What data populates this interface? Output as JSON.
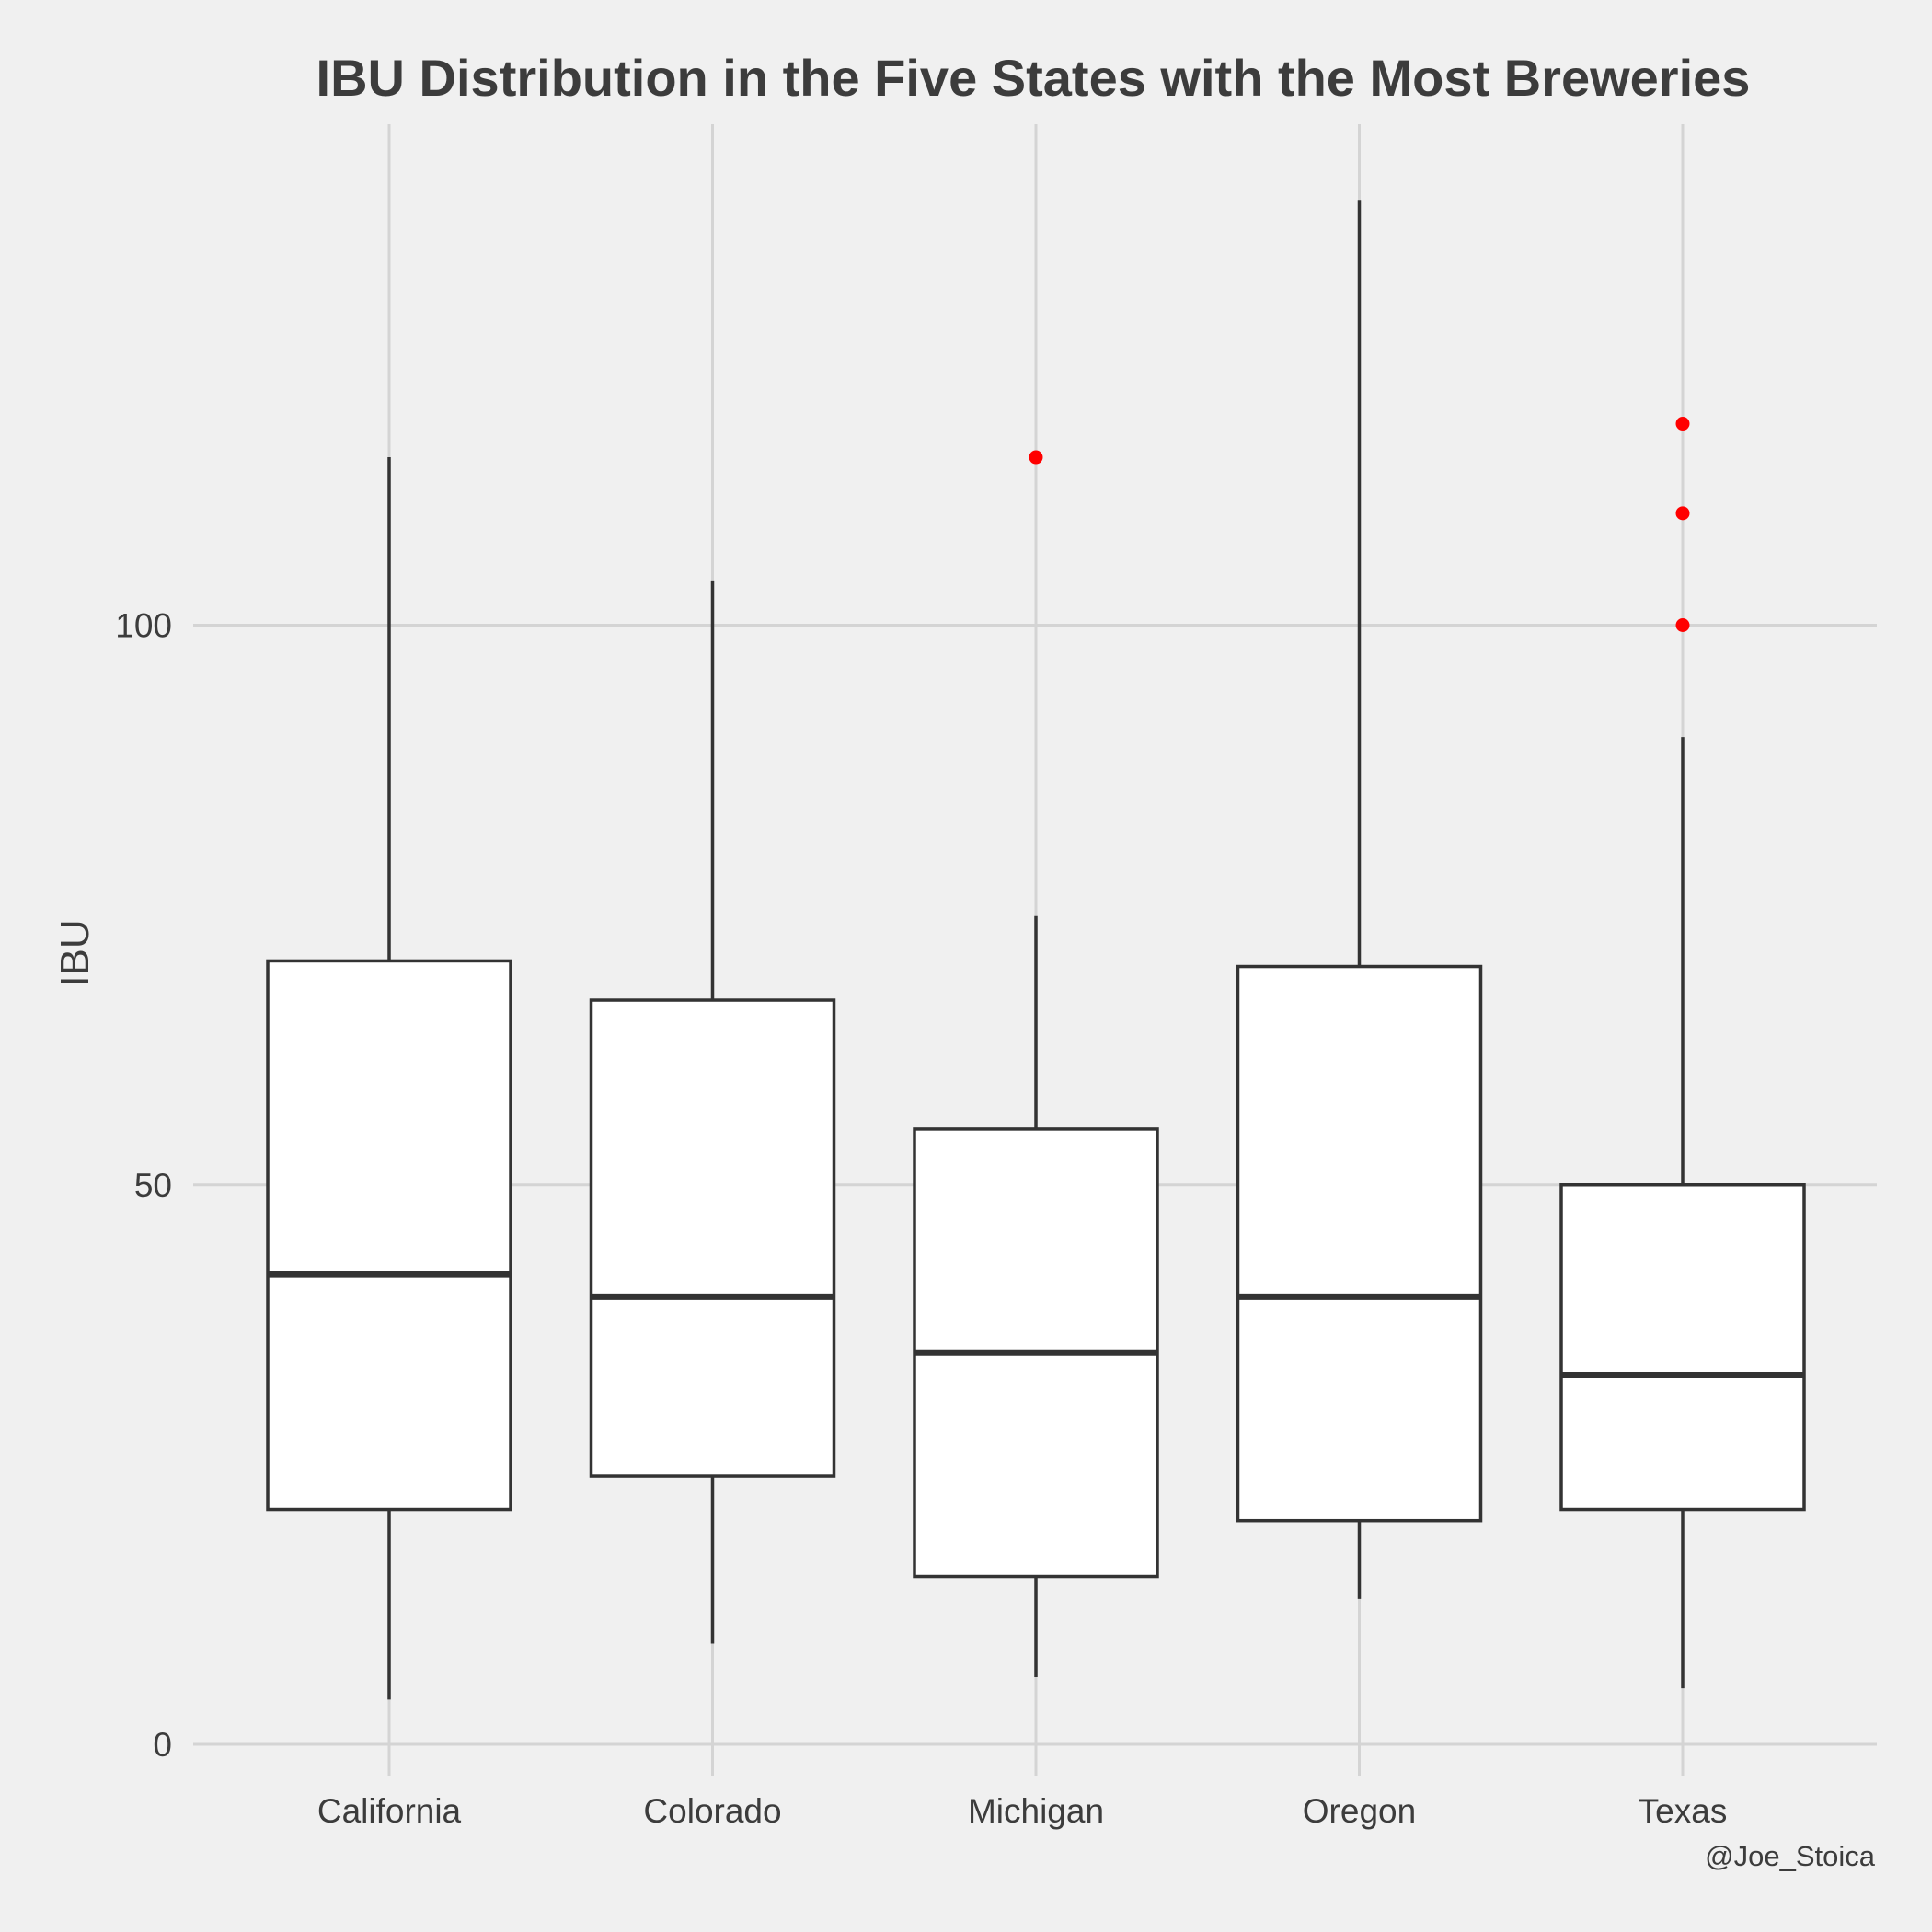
{
  "chart_data": {
    "type": "boxplot",
    "title": "IBU Distribution in the Five States with the Most Breweries",
    "xlabel": "",
    "ylabel": "IBU",
    "caption": "@Joe_Stoica",
    "ylim": [
      -5,
      140
    ],
    "yticks": [
      0,
      50,
      100
    ],
    "grid": true,
    "background_color": "#f0f0f0",
    "grid_color": "#d4d4d4",
    "box_fill": "#ffffff",
    "line_color": "#333333",
    "outlier_color": "#ff0000",
    "categories": [
      "California",
      "Colorado",
      "Michigan",
      "Oregon",
      "Texas"
    ],
    "boxes": [
      {
        "category": "California",
        "min": 4,
        "q1": 21,
        "median": 42,
        "q3": 70,
        "max": 115,
        "outliers": []
      },
      {
        "category": "Colorado",
        "min": 9,
        "q1": 24,
        "median": 40,
        "q3": 66.5,
        "max": 104,
        "outliers": []
      },
      {
        "category": "Michigan",
        "min": 6,
        "q1": 15,
        "median": 35,
        "q3": 55,
        "max": 74,
        "outliers": [
          115
        ]
      },
      {
        "category": "Oregon",
        "min": 13,
        "q1": 20,
        "median": 40,
        "q3": 69.5,
        "max": 138,
        "outliers": []
      },
      {
        "category": "Texas",
        "min": 5,
        "q1": 21,
        "median": 33,
        "q3": 50,
        "max": 90,
        "outliers": [
          100,
          110,
          118
        ]
      }
    ]
  }
}
